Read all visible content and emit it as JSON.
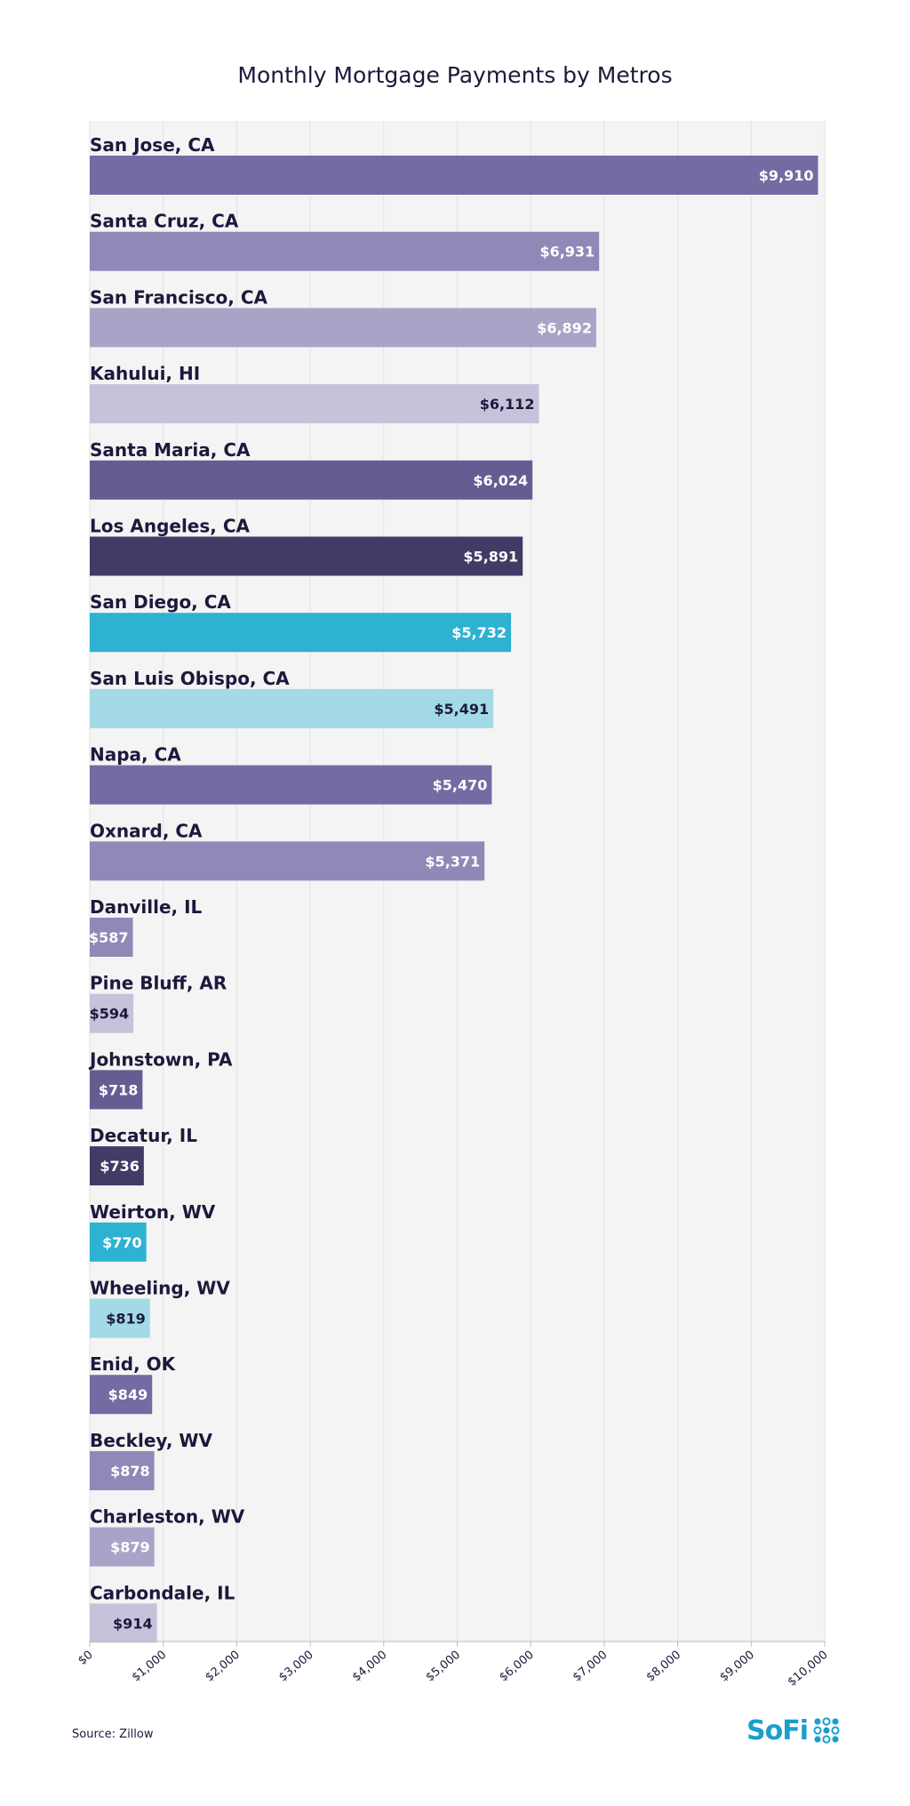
{
  "chart_data": {
    "type": "bar",
    "orientation": "horizontal",
    "title": "Monthly Mortgage Payments by Metros",
    "categories": [
      "San Jose, CA",
      "Santa Cruz, CA",
      "San Francisco, CA",
      "Kahului, HI",
      "Santa Maria, CA",
      "Los Angeles, CA",
      "San Diego, CA",
      "San Luis Obispo, CA",
      "Napa, CA",
      "Oxnard, CA",
      "Danville, IL",
      "Pine Bluff, AR",
      "Johnstown, PA",
      "Decatur, IL",
      "Weirton, WV",
      "Wheeling, WV",
      "Enid, OK",
      "Beckley, WV",
      "Charleston, WV",
      "Carbondale, IL"
    ],
    "values": [
      9910,
      6931,
      6892,
      6112,
      6024,
      5891,
      5732,
      5491,
      5470,
      5371,
      587,
      594,
      718,
      736,
      770,
      819,
      849,
      878,
      879,
      914
    ],
    "value_labels": [
      "$9,910",
      "$6,931",
      "$6,892",
      "$6,112",
      "$6,024",
      "$5,891",
      "$5,732",
      "$5,491",
      "$5,470",
      "$5,371",
      "$587",
      "$594",
      "$718",
      "$736",
      "$770",
      "$819",
      "$849",
      "$878",
      "$879",
      "$914"
    ],
    "bar_colors": [
      "#766aa3",
      "#9188b7",
      "#aaa3c8",
      "#c6c2da",
      "#675c92",
      "#433a66",
      "#2eb2d2",
      "#a4d9e6",
      "#766aa3",
      "#9188b7",
      "#9188b7",
      "#c6c2da",
      "#675c92",
      "#433a66",
      "#2eb2d2",
      "#a4d9e6",
      "#766aa3",
      "#9188b7",
      "#aaa3c8",
      "#c6c2da"
    ],
    "value_label_colors": [
      "#ffffff",
      "#ffffff",
      "#ffffff",
      "#1b1a3c",
      "#ffffff",
      "#ffffff",
      "#ffffff",
      "#1b1a3c",
      "#ffffff",
      "#ffffff",
      "#ffffff",
      "#1b1a3c",
      "#ffffff",
      "#ffffff",
      "#ffffff",
      "#1b1a3c",
      "#ffffff",
      "#ffffff",
      "#ffffff",
      "#1b1a3c"
    ],
    "xlim": [
      0,
      10000
    ],
    "x_ticks": [
      0,
      1000,
      2000,
      3000,
      4000,
      5000,
      6000,
      7000,
      8000,
      9000,
      10000
    ],
    "x_tick_labels": [
      "$0",
      "$1,000",
      "$2,000",
      "$3,000",
      "$4,000",
      "$5,000",
      "$6,000",
      "$7,000",
      "$8,000",
      "$9,000",
      "$10,000"
    ],
    "xlabel": "",
    "ylabel": "",
    "grid": true,
    "plot_background": "#f4f4f4"
  },
  "source": "Source: Zillow",
  "brand": {
    "name": "SoFi",
    "color": "#1a9fcc"
  }
}
